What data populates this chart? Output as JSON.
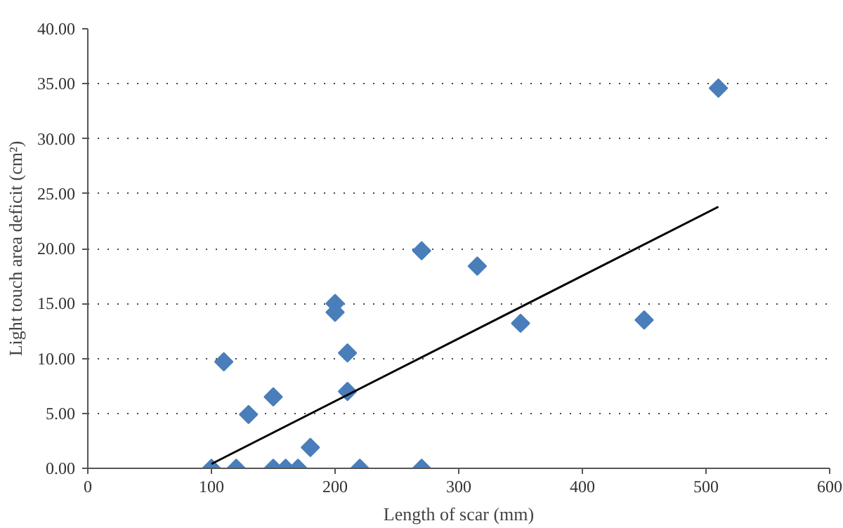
{
  "chart_data": {
    "type": "scatter",
    "xlabel": "Length of scar (mm)",
    "ylabel": "Light touch area deficit (cm²)",
    "xlim": [
      0,
      600
    ],
    "xticks": [
      0,
      100,
      200,
      300,
      400,
      500,
      600
    ],
    "ylim": [
      0,
      40
    ],
    "yticks": [
      {
        "value": 0,
        "label": "0.00"
      },
      {
        "value": 5,
        "label": "5.00"
      },
      {
        "value": 10,
        "label": "10.00"
      },
      {
        "value": 15,
        "label": "15.00"
      },
      {
        "value": 20,
        "label": "20.00"
      },
      {
        "value": 25,
        "label": "25.00"
      },
      {
        "value": 30,
        "label": "30.00"
      },
      {
        "value": 35,
        "label": "35.00"
      },
      {
        "value": 40,
        "label": "40.00"
      }
    ],
    "grid": "y",
    "series": [
      {
        "color": "#4a7ebb",
        "marker": "diamond",
        "x": [
          100,
          110,
          120,
          130,
          150,
          150,
          160,
          170,
          180,
          200,
          200,
          210,
          210,
          220,
          270,
          270,
          315,
          350,
          450,
          510
        ],
        "values": [
          0,
          9.7,
          0,
          4.9,
          6.5,
          0,
          0,
          0,
          1.9,
          15.0,
          14.2,
          10.5,
          7.0,
          0,
          19.8,
          0,
          18.4,
          13.2,
          13.5,
          34.6
        ]
      },
      {
        "type": "line",
        "color": "#000000",
        "x": [
          100,
          510
        ],
        "values": [
          0.4,
          23.8
        ]
      }
    ]
  }
}
